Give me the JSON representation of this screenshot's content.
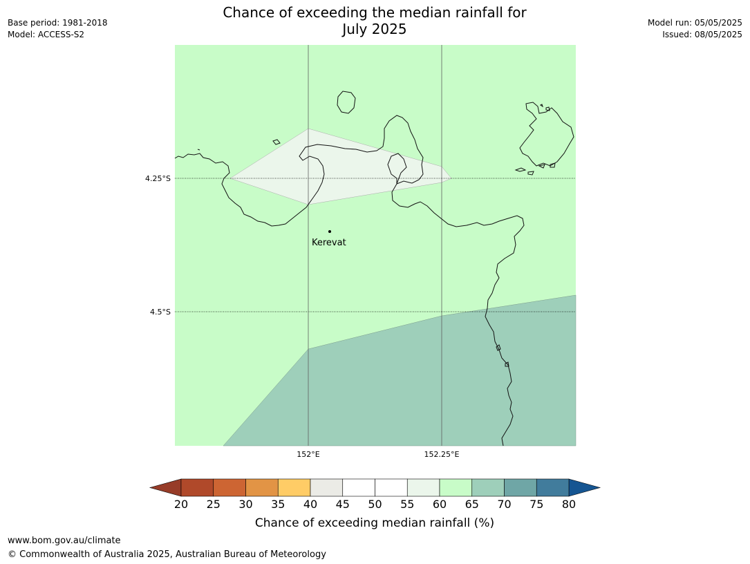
{
  "header": {
    "title_line1": "Chance of exceeding the median rainfall for",
    "title_line2": "July 2025",
    "base_period": "Base period: 1981-2018",
    "model": "Model: ACCESS-S2",
    "model_run": "Model run: 05/05/2025",
    "issued": "Issued: 08/05/2025"
  },
  "map": {
    "lat_labels": [
      "4.25°S",
      "4.5°S"
    ],
    "lon_labels": [
      "152°E",
      "152.25°E"
    ],
    "places": [
      {
        "name": "Kerevat"
      }
    ],
    "region_colors": {
      "60-65": "#c8fcc8",
      "55-60": "#ebf6eb",
      "65-70": "#9ecfba"
    }
  },
  "colorbar": {
    "ticks": [
      "20",
      "25",
      "30",
      "35",
      "40",
      "45",
      "50",
      "55",
      "60",
      "65",
      "70",
      "75",
      "80"
    ],
    "colors": [
      "#b0492a",
      "#cd6533",
      "#e29445",
      "#ffcc66",
      "#ebebe6",
      "#ffffff",
      "#ffffff",
      "#ebf6eb",
      "#c8fcc8",
      "#9ecfba",
      "#6fa6a6",
      "#417c9c"
    ],
    "under_color": "#973c28",
    "over_color": "#155592",
    "label": "Chance of exceeding median rainfall (%)"
  },
  "footer": {
    "url": "www.bom.gov.au/climate",
    "copyright": "© Commonwealth of Australia 2025, Australian Bureau of Meteorology"
  }
}
